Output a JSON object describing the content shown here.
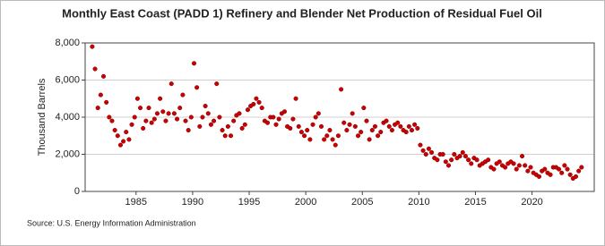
{
  "chart_data": {
    "type": "scatter",
    "title": "Monthly East Coast (PADD 1) Refinery and Blender Net Production of Residual Fuel Oil",
    "y_label": "Thousand Barrels",
    "source": "Source: U.S. Energy Information Administration",
    "color": "#cc0000",
    "grid": true,
    "xlim": [
      1980.5,
      2025.5
    ],
    "xticks": [
      1985,
      1990,
      1995,
      2000,
      2005,
      2010,
      2015,
      2020
    ],
    "ylim": [
      0,
      8000
    ],
    "yticks": [
      0,
      {
        "value": 2000,
        "label": "2,000"
      },
      {
        "value": 4000,
        "label": "4,000"
      },
      {
        "value": 6000,
        "label": "6,000"
      },
      {
        "value": 8000,
        "label": "8,000"
      }
    ],
    "x": [
      1981.125,
      1981.375,
      1981.625,
      1981.875,
      1982.125,
      1982.375,
      1982.625,
      1982.875,
      1983.125,
      1983.375,
      1983.625,
      1983.875,
      1984.125,
      1984.375,
      1984.625,
      1984.875,
      1985.125,
      1985.375,
      1985.625,
      1985.875,
      1986.125,
      1986.375,
      1986.625,
      1986.875,
      1987.125,
      1987.375,
      1987.625,
      1987.875,
      1988.125,
      1988.375,
      1988.625,
      1988.875,
      1989.125,
      1989.375,
      1989.625,
      1989.875,
      1990.125,
      1990.375,
      1990.625,
      1990.875,
      1991.125,
      1991.375,
      1991.625,
      1991.875,
      1992.125,
      1992.375,
      1992.625,
      1992.875,
      1993.125,
      1993.375,
      1993.625,
      1993.875,
      1994.125,
      1994.375,
      1994.625,
      1994.875,
      1995.125,
      1995.375,
      1995.625,
      1995.875,
      1996.125,
      1996.375,
      1996.625,
      1996.875,
      1997.125,
      1997.375,
      1997.625,
      1997.875,
      1998.125,
      1998.375,
      1998.625,
      1998.875,
      1999.125,
      1999.375,
      1999.625,
      1999.875,
      2000.125,
      2000.375,
      2000.625,
      2000.875,
      2001.125,
      2001.375,
      2001.625,
      2001.875,
      2002.125,
      2002.375,
      2002.625,
      2002.875,
      2003.125,
      2003.375,
      2003.625,
      2003.875,
      2004.125,
      2004.375,
      2004.625,
      2004.875,
      2005.125,
      2005.375,
      2005.625,
      2005.875,
      2006.125,
      2006.375,
      2006.625,
      2006.875,
      2007.125,
      2007.375,
      2007.625,
      2007.875,
      2008.125,
      2008.375,
      2008.625,
      2008.875,
      2009.125,
      2009.375,
      2009.625,
      2009.875,
      2010.125,
      2010.375,
      2010.625,
      2010.875,
      2011.125,
      2011.375,
      2011.625,
      2011.875,
      2012.125,
      2012.375,
      2012.625,
      2012.875,
      2013.125,
      2013.375,
      2013.625,
      2013.875,
      2014.125,
      2014.375,
      2014.625,
      2014.875,
      2015.125,
      2015.375,
      2015.625,
      2015.875,
      2016.125,
      2016.375,
      2016.625,
      2016.875,
      2017.125,
      2017.375,
      2017.625,
      2017.875,
      2018.125,
      2018.375,
      2018.625,
      2018.875,
      2019.125,
      2019.375,
      2019.625,
      2019.875,
      2020.125,
      2020.375,
      2020.625,
      2020.875,
      2021.125,
      2021.375,
      2021.625,
      2021.875,
      2022.125,
      2022.375,
      2022.625,
      2022.875,
      2023.125,
      2023.375,
      2023.625,
      2023.875,
      2024.125,
      2024.375
    ],
    "values": [
      7800,
      6600,
      4500,
      5200,
      6200,
      4800,
      4000,
      3800,
      3300,
      3000,
      2500,
      2700,
      3200,
      2800,
      3600,
      4000,
      5000,
      4500,
      3400,
      3800,
      4500,
      3700,
      3900,
      4200,
      5000,
      4300,
      3800,
      4200,
      5800,
      4200,
      3900,
      4500,
      5200,
      3800,
      3300,
      4000,
      6900,
      5600,
      3500,
      4000,
      4600,
      4200,
      3600,
      3800,
      5800,
      4000,
      3300,
      3000,
      3500,
      3000,
      3800,
      4100,
      4200,
      3400,
      3600,
      4400,
      4600,
      4700,
      5000,
      4800,
      4500,
      3800,
      3700,
      4000,
      4000,
      3600,
      3900,
      4200,
      4300,
      3500,
      3400,
      3900,
      5000,
      3500,
      3200,
      3000,
      3300,
      2800,
      3600,
      4000,
      4200,
      3500,
      2800,
      3000,
      3300,
      2800,
      2500,
      3000,
      5500,
      3700,
      3300,
      3600,
      4200,
      3500,
      3000,
      3200,
      4500,
      3800,
      2800,
      3300,
      3500,
      3000,
      3200,
      3700,
      3800,
      3500,
      3300,
      3600,
      3700,
      3500,
      3300,
      3200,
      3500,
      3300,
      3600,
      3400,
      2500,
      2200,
      2000,
      2300,
      2100,
      1800,
      1700,
      2000,
      2000,
      1600,
      1400,
      1700,
      2000,
      1800,
      1900,
      2100,
      1900,
      1700,
      1500,
      1800,
      1700,
      1400,
      1500,
      1600,
      1700,
      1300,
      1200,
      1500,
      1600,
      1400,
      1300,
      1500,
      1600,
      1500,
      1200,
      1400,
      1900,
      1400,
      1100,
      1300,
      1000,
      900,
      800,
      1100,
      1200,
      1000,
      900,
      1300,
      1300,
      1200,
      1000,
      1400,
      1200,
      900,
      700,
      800,
      1100,
      1300
    ]
  }
}
